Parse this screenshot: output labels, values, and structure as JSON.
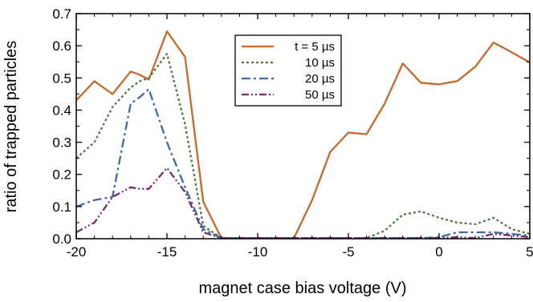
{
  "chart_data": {
    "type": "line",
    "xlabel": "magnet case bias voltage (V)",
    "ylabel": "ratio of trapped particles",
    "xlim": [
      -20,
      5
    ],
    "ylim": [
      0,
      0.7
    ],
    "xticks": [
      -20,
      -15,
      -10,
      -5,
      0,
      5
    ],
    "yticks": [
      0.0,
      0.1,
      0.2,
      0.3,
      0.4,
      0.5,
      0.6,
      0.7
    ],
    "grid": false,
    "legend_position": "top-center",
    "x": [
      -20,
      -19,
      -18,
      -17,
      -16.5,
      -16,
      -15,
      -14,
      -13,
      -12,
      -11,
      -10,
      -9,
      -8,
      -7,
      -6,
      -5,
      -4,
      -3,
      -2,
      -1,
      0,
      1,
      2,
      3,
      4,
      5
    ],
    "series": [
      {
        "name": "t = 5 µs",
        "color": "#c8692a",
        "dash": "solid",
        "values": [
          0.43,
          0.49,
          0.45,
          0.52,
          0.51,
          0.495,
          0.645,
          0.565,
          0.115,
          0.002,
          0.002,
          0.002,
          0.002,
          0.002,
          0.12,
          0.27,
          0.33,
          0.325,
          0.42,
          0.545,
          0.485,
          0.48,
          0.49,
          0.535,
          0.61,
          0.58,
          0.548
        ]
      },
      {
        "name": "10 µs",
        "color": "#4e7a3f",
        "dash": "dotted",
        "values": [
          0.25,
          0.3,
          0.41,
          0.47,
          0.49,
          0.5,
          0.575,
          0.355,
          0.04,
          0.002,
          0.002,
          0.002,
          0.002,
          0.002,
          0.002,
          0.002,
          0.002,
          0.002,
          0.025,
          0.075,
          0.085,
          0.065,
          0.05,
          0.045,
          0.065,
          0.03,
          0.015
        ]
      },
      {
        "name": "20 µs",
        "color": "#3d6aa8",
        "dash": "dashdot",
        "values": [
          0.1,
          0.12,
          0.13,
          0.42,
          0.44,
          0.465,
          0.3,
          0.16,
          0.03,
          0.002,
          0.002,
          0.002,
          0.002,
          0.002,
          0.002,
          0.002,
          0.002,
          0.002,
          0.002,
          0.002,
          0.002,
          0.005,
          0.02,
          0.02,
          0.02,
          0.015,
          0.01
        ]
      },
      {
        "name": "50 µs",
        "color": "#7b2a6e",
        "dash": "dashdotdot",
        "values": [
          0.02,
          0.05,
          0.13,
          0.16,
          0.155,
          0.155,
          0.22,
          0.145,
          0.02,
          0.002,
          0.002,
          0.002,
          0.002,
          0.002,
          0.002,
          0.002,
          0.002,
          0.002,
          0.002,
          0.002,
          0.002,
          0.002,
          0.005,
          0.002,
          0.015,
          0.01,
          0.005
        ]
      }
    ]
  }
}
